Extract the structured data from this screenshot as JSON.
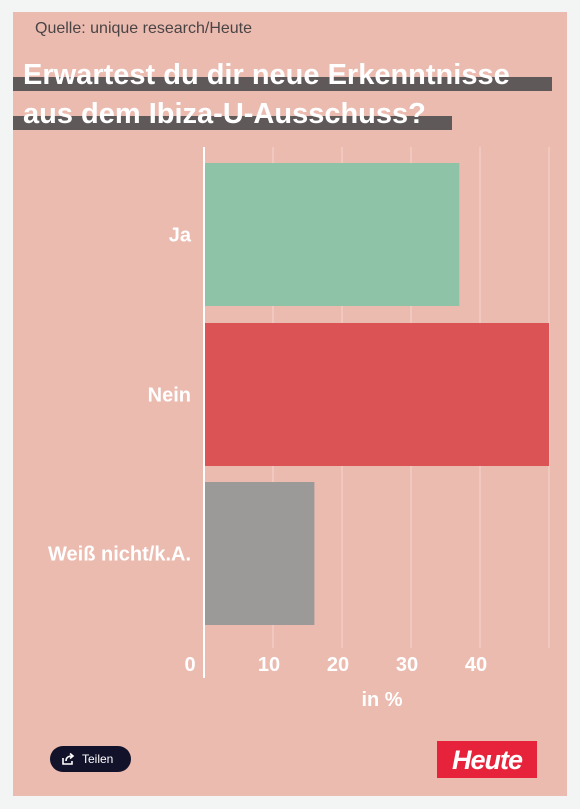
{
  "source": "Quelle: unique research/Heute",
  "title_lines": [
    "Erwartest du dir neue Erkenntnisse",
    "aus dem Ibiza-U-Ausschuss?"
  ],
  "share": {
    "label": "Teilen",
    "icon": "share-icon"
  },
  "logo": {
    "text": "Heute"
  },
  "colors": {
    "background": "#ebbbb0",
    "title_bar": "#5f5959",
    "ja": "#8fc3a8",
    "nein": "#db5355",
    "weiss_nicht": "#9c9a99",
    "logo": "#e6233a"
  },
  "chart_data": {
    "type": "bar",
    "orientation": "horizontal",
    "categories": [
      "Ja",
      "Nein",
      "Weiß nicht/k.A."
    ],
    "values": [
      37,
      50,
      16
    ],
    "xlabel": "in %",
    "ylabel": "",
    "xlim": [
      0,
      50
    ],
    "x_ticks": [
      0,
      10,
      20,
      30,
      40
    ],
    "grid": true,
    "legend": "none"
  }
}
